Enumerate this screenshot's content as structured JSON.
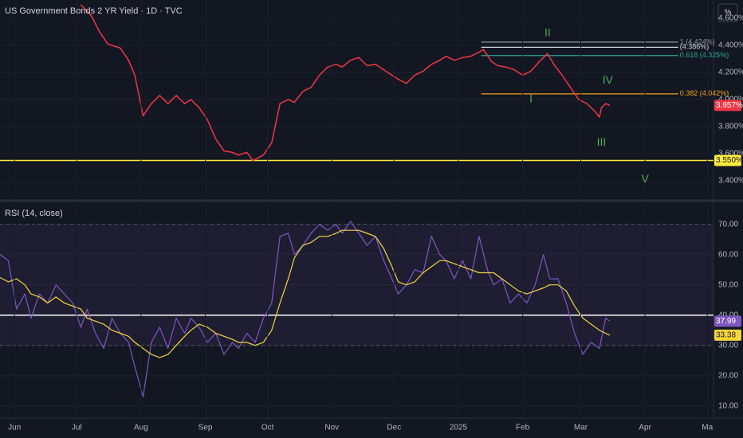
{
  "chart_data": [
    {
      "type": "line",
      "title": "US Government Bonds 2 YR Yield · 1D · TVC",
      "scale_button": "%",
      "x": [
        32,
        37,
        41,
        45,
        51,
        55,
        58,
        62,
        66,
        70,
        74,
        78,
        82,
        85,
        89,
        93,
        97,
        101,
        105,
        108,
        112,
        115,
        120,
        124,
        128,
        132,
        135,
        139,
        143,
        147,
        151,
        155,
        158,
        162,
        166,
        170,
        174,
        178,
        182,
        185,
        189,
        193,
        197,
        201,
        205,
        208,
        212,
        216,
        220,
        224,
        226,
        230,
        233,
        237,
        241,
        245,
        249,
        253,
        257,
        260,
        264,
        268,
        272,
        276,
        280,
        282,
        283,
        285,
        287
      ],
      "series": [
        {
          "color": "#f23645",
          "values": [
            4.7,
            4.62,
            4.5,
            4.41,
            4.38,
            4.29,
            4.18,
            3.88,
            3.97,
            4.03,
            3.97,
            4.03,
            3.97,
            4.0,
            3.94,
            3.85,
            3.71,
            3.62,
            3.61,
            3.59,
            3.61,
            3.55,
            3.59,
            3.68,
            3.97,
            4.0,
            3.98,
            4.06,
            4.09,
            4.18,
            4.24,
            4.26,
            4.24,
            4.29,
            4.31,
            4.25,
            4.26,
            4.22,
            4.18,
            4.15,
            4.12,
            4.18,
            4.21,
            4.26,
            4.29,
            4.32,
            4.29,
            4.31,
            4.32,
            4.35,
            4.37,
            4.28,
            4.25,
            4.24,
            4.22,
            4.18,
            4.21,
            4.28,
            4.34,
            4.26,
            4.18,
            4.09,
            4.0,
            3.97,
            3.91,
            3.87,
            3.94,
            3.97,
            3.957
          ],
          "last_value_label": "3.957%"
        }
      ],
      "xlim": [
        -7,
        337
      ],
      "ylim": [
        3.265,
        4.735
      ],
      "yticks": [
        {
          "value": 3.4,
          "label": "3.400%"
        },
        {
          "value": 3.6,
          "label": "3.600%"
        },
        {
          "value": 3.8,
          "label": "3.800%"
        },
        {
          "value": 4.0,
          "label": "4.000%"
        },
        {
          "value": 4.2,
          "label": "4.200%"
        },
        {
          "value": 4.4,
          "label": "4.400%"
        },
        {
          "value": 4.6,
          "label": "4.600%"
        }
      ],
      "grid": true,
      "hlines": [
        {
          "value": 3.55,
          "label": "3.550%",
          "color": "#ffeb3b"
        }
      ],
      "levels_x": [
        225,
        320
      ],
      "levels": [
        {
          "value": 4.424,
          "label": "1 (4.424%)",
          "color": "#9598a1"
        },
        {
          "value": 4.386,
          "label": "(4.386%)",
          "color": "#d1d4dc"
        },
        {
          "value": 4.325,
          "label": "0.618 (4.325%)",
          "color": "#26a69a"
        },
        {
          "value": 4.042,
          "label": "0.382 (4.042%)",
          "color": "#f7a21b"
        }
      ],
      "annotations": [
        {
          "text": "I",
          "x": 249,
          "y": 4.0
        },
        {
          "text": "II",
          "x": 257,
          "y": 4.49
        },
        {
          "text": "III",
          "x": 283,
          "y": 3.68
        },
        {
          "text": "IV",
          "x": 286,
          "y": 4.14
        },
        {
          "text": "V",
          "x": 304,
          "y": 3.41
        }
      ],
      "annotation_color": "#4caf50"
    },
    {
      "type": "line",
      "title": "RSI (14, close)",
      "x": [
        -7,
        -3,
        1,
        5,
        8,
        12,
        16,
        20,
        24,
        28,
        32,
        35,
        39,
        43,
        47,
        51,
        55,
        58,
        62,
        66,
        70,
        74,
        78,
        82,
        85,
        89,
        93,
        97,
        101,
        105,
        108,
        112,
        116,
        120,
        124,
        128,
        132,
        135,
        139,
        143,
        147,
        151,
        155,
        158,
        162,
        166,
        170,
        174,
        178,
        182,
        185,
        189,
        193,
        197,
        201,
        205,
        208,
        212,
        216,
        220,
        224,
        228,
        231,
        235,
        239,
        243,
        247,
        251,
        255,
        258,
        262,
        266,
        270,
        274,
        278,
        282,
        285,
        287
      ],
      "series": [
        {
          "color": "#7e57c2",
          "values": [
            60,
            58,
            42,
            47,
            39,
            47,
            44,
            50,
            47,
            44,
            36,
            42,
            34,
            29,
            39,
            34,
            31,
            23,
            13,
            31,
            36,
            29,
            39,
            34,
            39,
            36,
            31,
            34,
            27,
            31,
            29,
            34,
            31,
            39,
            44,
            66,
            67,
            60,
            63,
            67,
            70,
            68,
            70,
            67,
            71,
            67,
            63,
            66,
            58,
            52,
            47,
            50,
            55,
            54,
            66,
            60,
            58,
            52,
            58,
            52,
            66,
            55,
            50,
            52,
            44,
            47,
            44,
            50,
            60,
            52,
            52,
            44,
            34,
            27,
            31,
            29,
            39,
            37.99
          ]
        },
        {
          "color": "#f5d63b",
          "values": [
            52.4,
            51,
            52,
            50,
            47,
            46,
            44,
            46,
            44,
            43,
            42,
            39,
            38,
            37,
            35,
            34,
            33,
            31,
            29,
            27,
            26,
            27,
            30,
            33,
            35,
            37,
            36,
            34,
            33,
            32,
            31,
            31,
            30,
            31,
            35,
            44,
            52,
            59,
            63,
            64,
            66,
            66,
            67,
            68,
            68,
            68,
            67,
            66,
            62,
            56,
            51,
            50,
            51,
            54,
            56,
            58,
            58,
            57,
            56,
            55,
            54,
            54,
            54,
            52,
            50,
            48,
            47,
            48,
            49,
            50,
            50,
            48,
            43,
            39,
            37,
            35,
            34,
            33.38
          ]
        }
      ],
      "xlim": [
        -7,
        337
      ],
      "ylim": [
        6,
        77
      ],
      "yticks": [
        {
          "value": 10,
          "label": "10.00"
        },
        {
          "value": 20,
          "label": "20.00"
        },
        {
          "value": 30,
          "label": "30.00"
        },
        {
          "value": 40,
          "label": "40.00"
        },
        {
          "value": 50,
          "label": "50.00"
        },
        {
          "value": 60,
          "label": "60.00"
        },
        {
          "value": 70,
          "label": "70.00"
        }
      ],
      "band": [
        30,
        70
      ],
      "hlines": [
        {
          "value": 40,
          "color": "#ffffff"
        }
      ],
      "xticks": [
        {
          "value": 0,
          "label": "Jun"
        },
        {
          "value": 30,
          "label": "Jul"
        },
        {
          "value": 61,
          "label": "Aug"
        },
        {
          "value": 92,
          "label": "Sep"
        },
        {
          "value": 122,
          "label": "Oct"
        },
        {
          "value": 153,
          "label": "Nov"
        },
        {
          "value": 183,
          "label": "Dec"
        },
        {
          "value": 214,
          "label": "2025"
        },
        {
          "value": 245,
          "label": "Feb"
        },
        {
          "value": 273,
          "label": "Mar"
        },
        {
          "value": 304,
          "label": "Apr"
        },
        {
          "value": 334,
          "label": "Ma"
        }
      ]
    }
  ]
}
